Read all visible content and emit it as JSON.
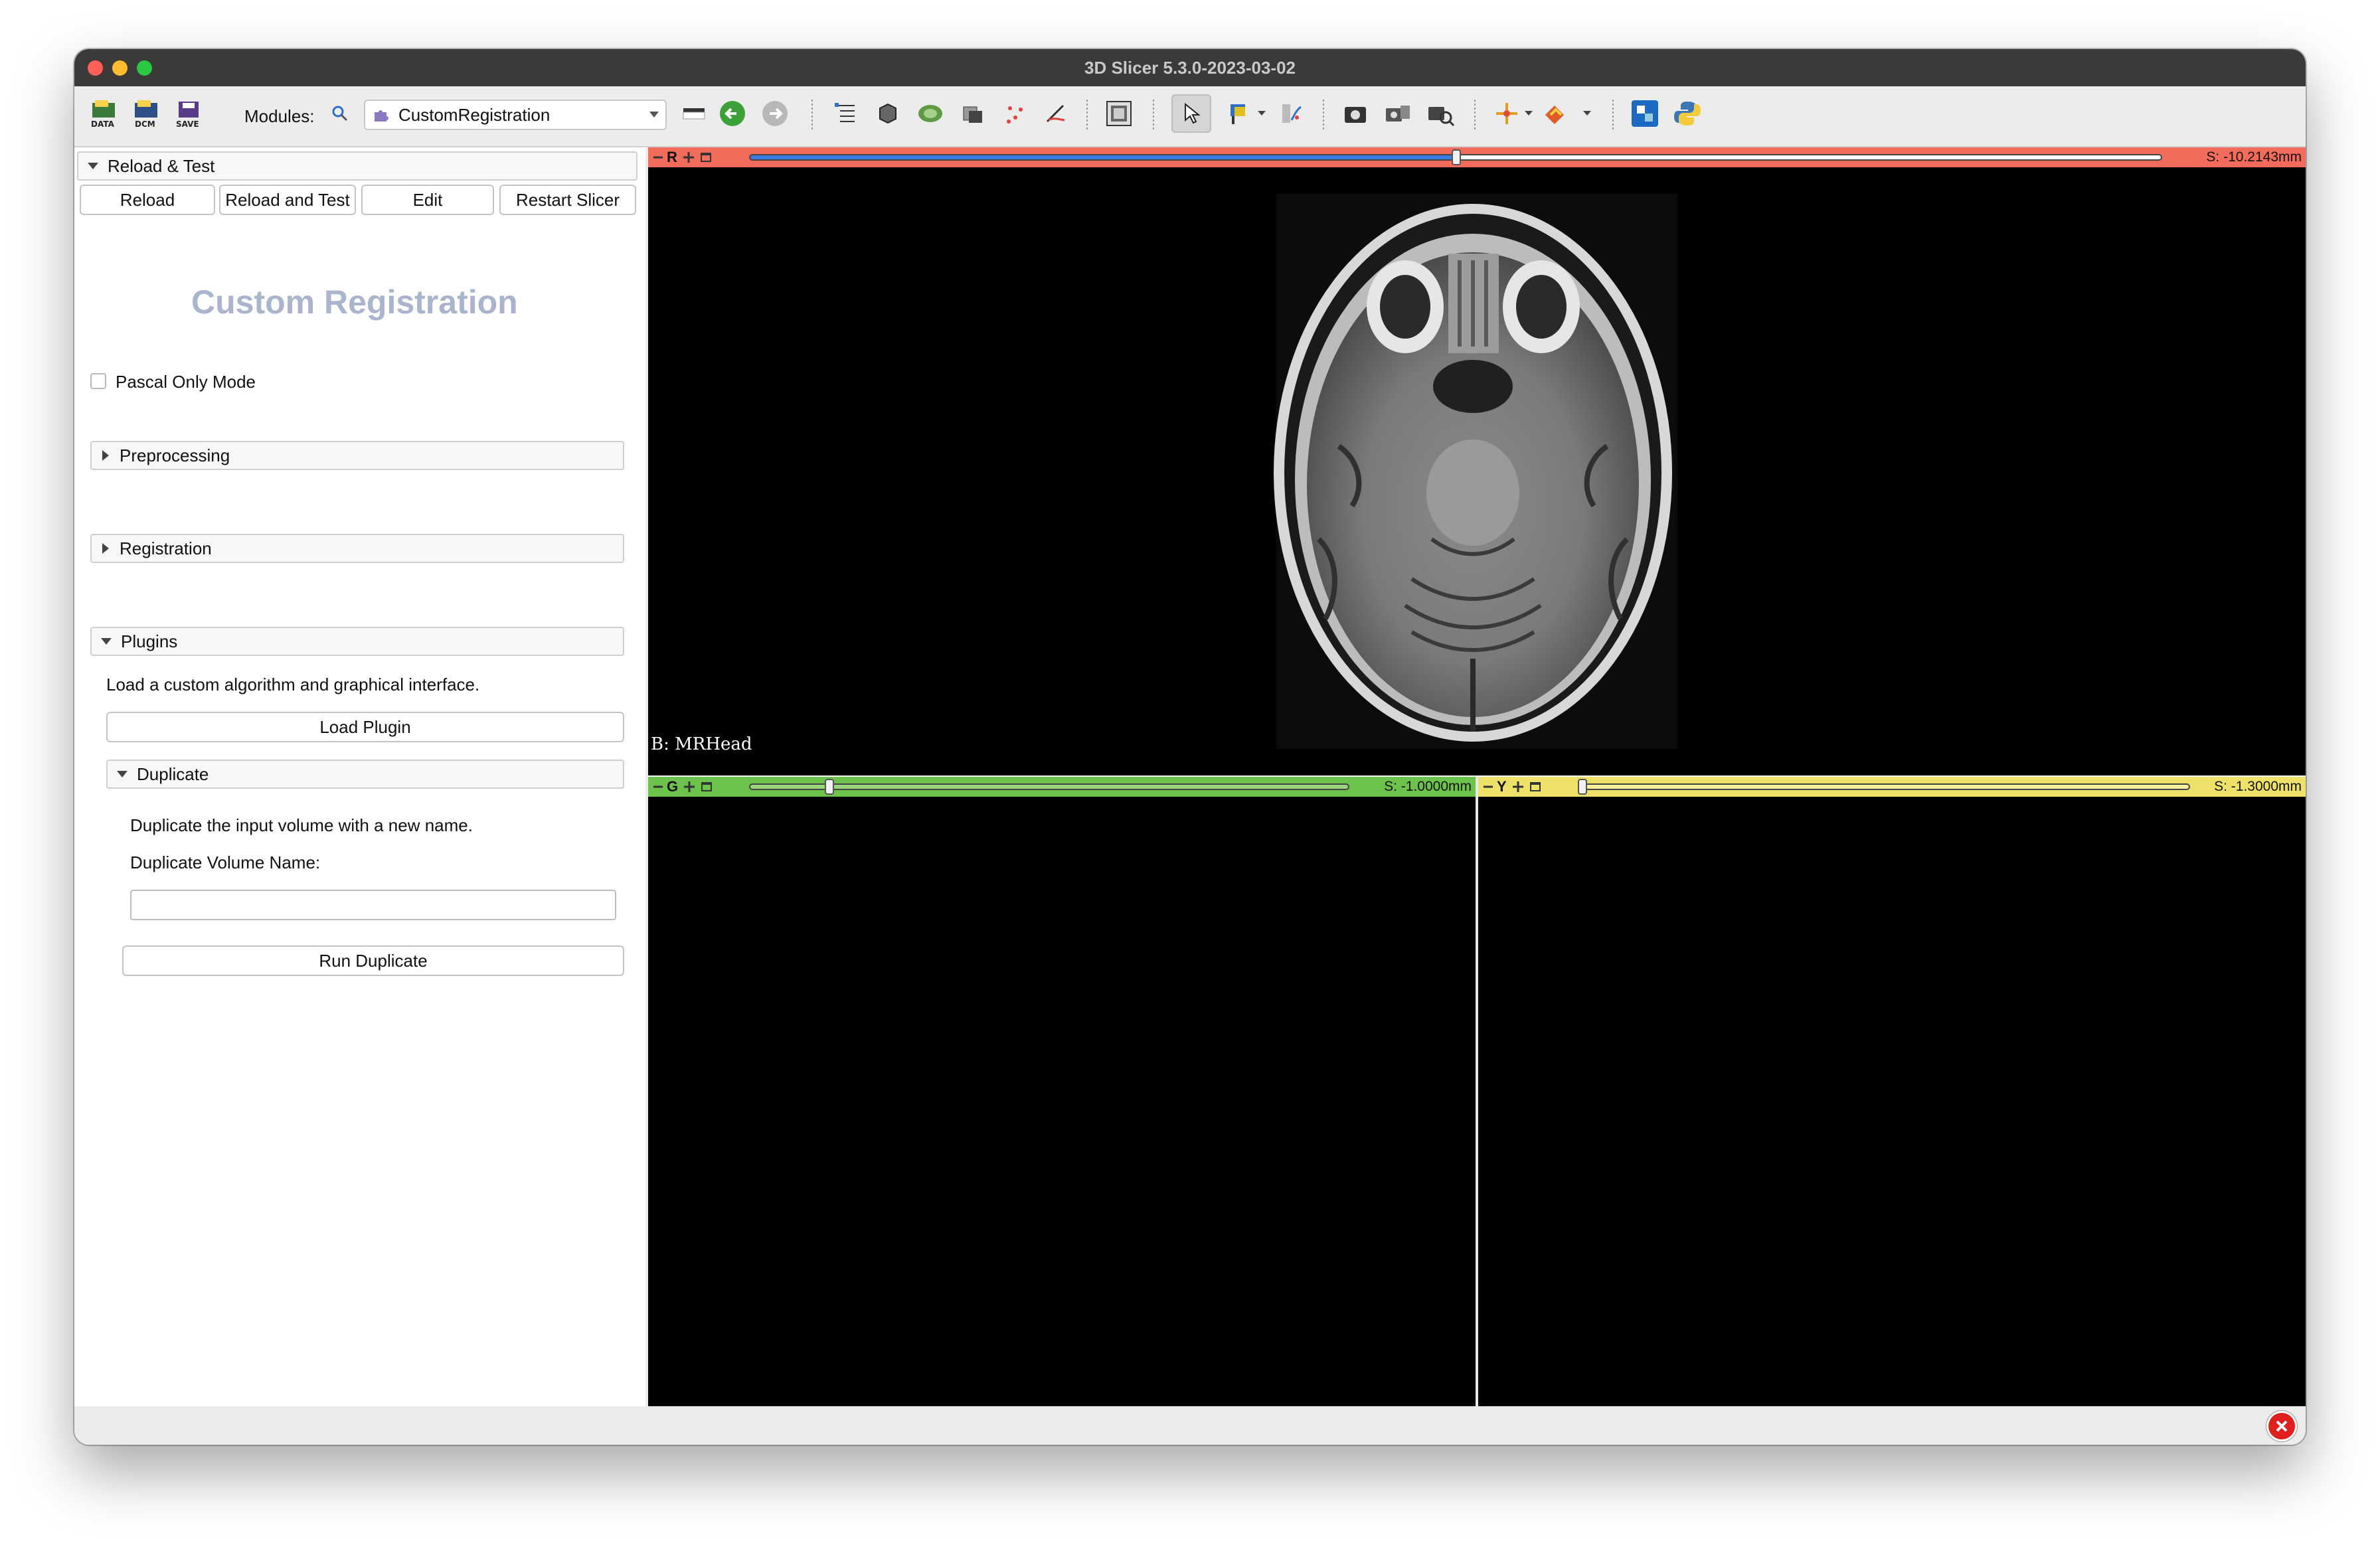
{
  "window": {
    "title": "3D Slicer 5.3.0-2023-03-02"
  },
  "toolbar": {
    "data_label": "DATA",
    "dcm_label": "DCM",
    "save_label": "SAVE",
    "modules_label": "Modules:",
    "module_selected": "CustomRegistration"
  },
  "left_panel": {
    "reload_section": {
      "title": "Reload & Test",
      "buttons": [
        "Reload",
        "Reload and Test",
        "Edit",
        "Restart Slicer"
      ]
    },
    "heading": "Custom Registration",
    "pascal_mode_label": "Pascal Only Mode",
    "sections": {
      "preprocessing": "Preprocessing",
      "registration": "Registration",
      "plugins": "Plugins"
    },
    "plugins": {
      "description": "Load a custom algorithm and graphical interface.",
      "load_button": "Load Plugin",
      "duplicate": {
        "title": "Duplicate",
        "description": "Duplicate the input volume with a new name.",
        "name_label": "Duplicate Volume Name:",
        "name_value": "",
        "run_button": "Run Duplicate"
      }
    }
  },
  "views": {
    "red": {
      "letter": "R",
      "offset": "S: -10.2143mm",
      "background_label": "B: MRHead",
      "slider_fraction": 0.5,
      "color": "#f26b5b"
    },
    "green": {
      "letter": "G",
      "offset": "S: -1.0000mm",
      "slider_fraction": 0.0,
      "color": "#6cc24a"
    },
    "yellow": {
      "letter": "Y",
      "offset": "S: -1.3000mm",
      "slider_fraction": 0.0,
      "color": "#ede16a"
    }
  },
  "icons": [
    "data-icon",
    "dcm-icon",
    "save-icon",
    "search-icon",
    "puzzle-icon",
    "layout-icon",
    "back-icon",
    "forward-icon",
    "python-icon",
    "error-icon"
  ]
}
